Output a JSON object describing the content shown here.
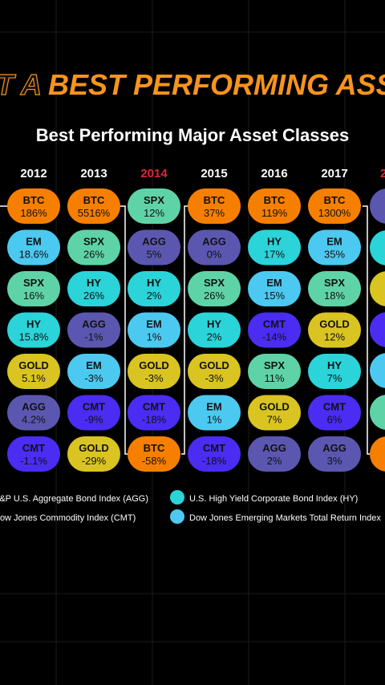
{
  "banner": {
    "prefix": "NOT A",
    "highlight": "BEST PERFORMING ASSET"
  },
  "title": "Best Performing Major Asset Classes",
  "highlight_year_color": "#e0263a",
  "columns": [
    {
      "year": "2012",
      "cells": [
        [
          "BTC",
          "186%"
        ],
        [
          "EM",
          "18.6%"
        ],
        [
          "SPX",
          "16%"
        ],
        [
          "HY",
          "15.8%"
        ],
        [
          "GOLD",
          "5.1%"
        ],
        [
          "AGG",
          "4.2%"
        ],
        [
          "CMT",
          "-1.1%"
        ]
      ]
    },
    {
      "year": "2013",
      "cells": [
        [
          "BTC",
          "5516%"
        ],
        [
          "SPX",
          "26%"
        ],
        [
          "HY",
          "26%"
        ],
        [
          "AGG",
          "-1%"
        ],
        [
          "EM",
          "-3%"
        ],
        [
          "CMT",
          "-9%"
        ],
        [
          "GOLD",
          "-29%"
        ]
      ]
    },
    {
      "year": "2014",
      "highlight": true,
      "cells": [
        [
          "SPX",
          "12%"
        ],
        [
          "AGG",
          "5%"
        ],
        [
          "HY",
          "2%"
        ],
        [
          "EM",
          "1%"
        ],
        [
          "GOLD",
          "-3%"
        ],
        [
          "CMT",
          "-18%"
        ],
        [
          "BTC",
          "-58%"
        ]
      ]
    },
    {
      "year": "2015",
      "cells": [
        [
          "BTC",
          "37%"
        ],
        [
          "AGG",
          "0%"
        ],
        [
          "SPX",
          "26%"
        ],
        [
          "HY",
          "2%"
        ],
        [
          "GOLD",
          "-3%"
        ],
        [
          "EM",
          "1%"
        ],
        [
          "CMT",
          "-18%"
        ]
      ]
    },
    {
      "year": "2016",
      "cells": [
        [
          "BTC",
          "119%"
        ],
        [
          "HY",
          "17%"
        ],
        [
          "EM",
          "15%"
        ],
        [
          "CMT",
          "-14%"
        ],
        [
          "SPX",
          "11%"
        ],
        [
          "GOLD",
          "7%"
        ],
        [
          "AGG",
          "2%"
        ]
      ]
    },
    {
      "year": "2017",
      "cells": [
        [
          "BTC",
          "1300%"
        ],
        [
          "EM",
          "35%"
        ],
        [
          "SPX",
          "18%"
        ],
        [
          "GOLD",
          "12%"
        ],
        [
          "HY",
          "7%"
        ],
        [
          "CMT",
          "6%"
        ],
        [
          "AGG",
          "3%"
        ]
      ]
    }
  ],
  "asset_colors": {
    "BTC": "#f77f00",
    "EM": "#4cc9f0",
    "SPX": "#5fd3a8",
    "HY": "#2ad4d9",
    "AGG": "#5b57b0",
    "CMT": "#4a2cf2",
    "GOLD": "#d9c422"
  },
  "legend": [
    {
      "label": "S&P U.S. Aggregate Bond Index (AGG)",
      "asset": "AGG"
    },
    {
      "label": "U.S. High Yield Corporate Bond Index (HY)",
      "asset": "HY"
    },
    {
      "label": "Dow Jones Commodity Index (CMT)",
      "asset": "CMT"
    },
    {
      "label": "Dow Jones Emerging Markets Total Return Index",
      "asset": "EM"
    }
  ]
}
